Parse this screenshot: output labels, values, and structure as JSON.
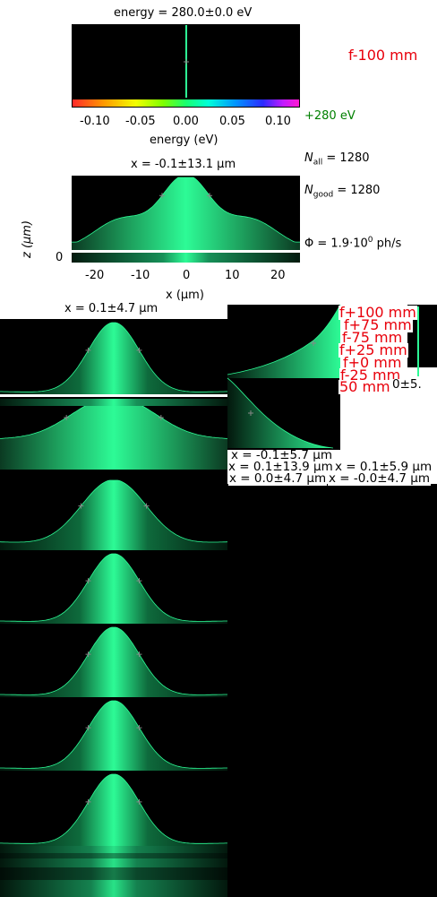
{
  "energy_panel": {
    "title": "energy = 280.0±0.0 eV",
    "xlabel": "energy (eV)",
    "ticks": [
      "-0.10",
      "-0.05",
      "0.00",
      "0.05",
      "0.10"
    ]
  },
  "main_panel": {
    "title": "x = -0.1±13.1 μm",
    "xlabel": "x (μm)",
    "ylabel": "z (μm)",
    "xticks": [
      "-20",
      "-10",
      "0",
      "10",
      "20"
    ],
    "ytick": "0"
  },
  "info": {
    "focus": "f-100 mm",
    "energy": "+280 eV",
    "n_all": "N",
    "n_all_sub": "all",
    "n_all_val": " = 1280",
    "n_good": "N",
    "n_good_sub": "good",
    "n_good_val": " = 1280",
    "flux": "Φ = 1.9·10",
    "flux_exp": "0",
    "flux_unit": " ph/s"
  },
  "stack": {
    "title": "x = 0.1±4.7 μm"
  },
  "overlap": {
    "focus_labels": [
      "f+100 mm",
      "f+75 mm",
      "f-75 mm",
      "f+25 mm",
      "f+0 mm",
      "f-25 mm",
      "50 mm"
    ],
    "frag": "0±5.",
    "width_labels": [
      "x = -0.1±5.7 μm",
      "x = 0.1±13.9 μm",
      "x = 0.1±5.9 μm",
      "x = 0.0±4.7 μm",
      "x = -0.0±4.7 μm"
    ]
  },
  "colors": {
    "beam": "#2dfb96",
    "focus_label": "#e8000b",
    "energy_label": "#008000"
  },
  "chart_data": [
    {
      "type": "heatmap",
      "title": "energy = 280.0±0.0 eV",
      "xlabel": "energy (eV)",
      "xlim": [
        -0.125,
        0.125
      ],
      "colorbar_ticks": [
        -0.1,
        -0.05,
        0.0,
        0.05,
        0.1
      ],
      "peak_x": 0.0
    },
    {
      "type": "area",
      "title": "x = -0.1±13.1 μm",
      "xlabel": "x (μm)",
      "ylabel": "z (μm)",
      "xlim": [
        -25,
        25
      ],
      "sigma": 13.1,
      "profile_model": "central gaussian + side shoulders"
    },
    {
      "type": "area",
      "title": "x = 0.1±4.7 μm",
      "panels": [
        {
          "shape": "narrow",
          "sigma": 4.7
        },
        {
          "shape": "wide",
          "sigma": 13.1
        },
        {
          "shape": "medium",
          "sigma": 5.9
        },
        {
          "shape": "narrow",
          "sigma": 5.7
        },
        {
          "shape": "narrow",
          "sigma": 4.7
        },
        {
          "shape": "narrow",
          "sigma": 4.7
        },
        {
          "shape": "narrow",
          "sigma": 4.7
        }
      ]
    }
  ]
}
